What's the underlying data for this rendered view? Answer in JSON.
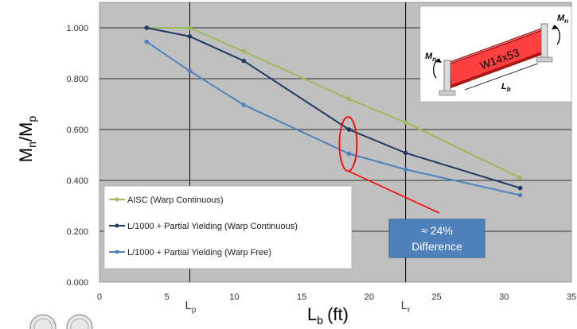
{
  "chart_data": {
    "type": "line",
    "xlabel": "L",
    "xlabel_sub": "b",
    "xlabel_unit": "(ft)",
    "ylabel_main": "M",
    "ylabel_sub1": "n",
    "ylabel_slash": "/M",
    "ylabel_sub2": "p",
    "xlim": [
      0,
      35
    ],
    "ylim": [
      0,
      1.1
    ],
    "x_ticks": [
      0,
      5,
      10,
      15,
      20,
      25,
      30,
      35
    ],
    "x_tick_labels": [
      "0",
      "5",
      "10",
      "15",
      "20",
      "25",
      "30",
      "35"
    ],
    "y_ticks": [
      0,
      0.2,
      0.4,
      0.6,
      0.8,
      1.0
    ],
    "y_tick_labels": [
      "0.000",
      "0.200",
      "0.400",
      "0.600",
      "0.800",
      "1.000"
    ],
    "grid": "horizontal",
    "background": "#c0c0c0",
    "vertical_markers": [
      {
        "x": 6.7,
        "label": "L",
        "sub": "p"
      },
      {
        "x": 22.7,
        "label": "L",
        "sub": "r"
      }
    ],
    "series": [
      {
        "name": "AISC (Warp Continuous)",
        "color": "#9bbb59",
        "x": [
          3.5,
          6.7,
          10.7,
          18.5,
          22.7,
          31.2
        ],
        "y": [
          1.0,
          1.0,
          0.907,
          0.72,
          0.628,
          0.41
        ]
      },
      {
        "name": "L/1000 + Partial Yielding (Warp Continuous)",
        "color": "#1f3864",
        "x": [
          3.5,
          6.7,
          10.7,
          18.5,
          22.7,
          31.2
        ],
        "y": [
          1.0,
          0.966,
          0.87,
          0.6,
          0.508,
          0.37
        ]
      },
      {
        "name": "L/1000 + Partial Yielding (Warp Free)",
        "color": "#4f81bd",
        "x": [
          3.5,
          6.7,
          10.7,
          18.5,
          22.7,
          31.2
        ],
        "y": [
          0.945,
          0.83,
          0.697,
          0.505,
          0.443,
          0.342
        ]
      }
    ],
    "legend": {
      "placement": "bottom-left"
    },
    "annotation": {
      "text_line1": "≈ 24%",
      "text_line2": "Difference",
      "x": 18.5,
      "y_range": [
        0.505,
        0.6
      ],
      "color": "#4f81bd",
      "line_color": "#ff0000"
    },
    "inset": {
      "beam_label": "W14x53",
      "moment_left": "M",
      "moment_left_sub": "n",
      "moment_right": "M",
      "moment_right_sub": "n",
      "length": "L",
      "length_sub": "b"
    }
  }
}
